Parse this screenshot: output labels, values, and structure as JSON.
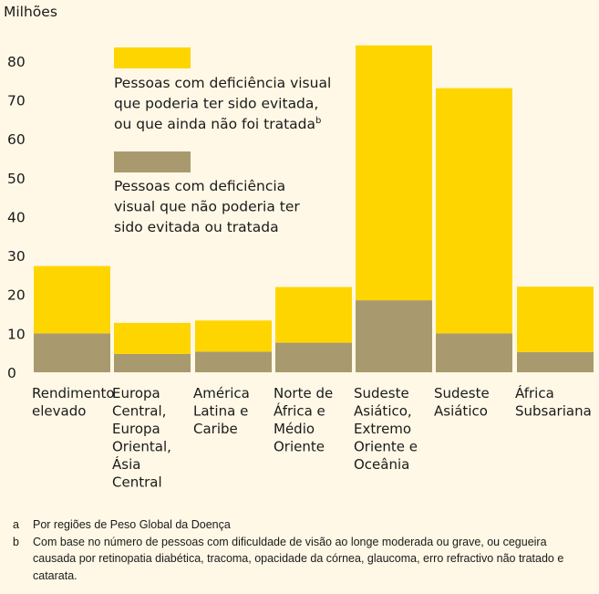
{
  "chart_data": {
    "type": "bar",
    "stacked": true,
    "ylabel": "Milhões",
    "ylim": [
      0,
      80
    ],
    "yticks": [
      0,
      10,
      20,
      30,
      40,
      50,
      60,
      70,
      80
    ],
    "grid": false,
    "legend_position": "inside-top-left",
    "categories": [
      [
        "Rendimento",
        "elevado"
      ],
      [
        "Europa",
        "Central,",
        "Europa",
        "Oriental,",
        "Ásia",
        "Central"
      ],
      [
        "América",
        "Latina e",
        "Caribe"
      ],
      [
        "Norte de",
        "África e",
        "Médio",
        "Oriente"
      ],
      [
        "Sudeste",
        "Asiático,",
        "Extremo",
        "Oriente e",
        "Oceânia"
      ],
      [
        "Sudeste",
        "Asiático"
      ],
      [
        "África",
        "Subsariana"
      ]
    ],
    "series": [
      {
        "name": [
          "Pessoas com deficiência",
          "visual que não poderia ter",
          "sido evitada ou tratada"
        ],
        "color": "#A89A6E",
        "values": [
          10,
          4.7,
          5.3,
          7.6,
          18.5,
          10,
          5.2
        ]
      },
      {
        "name": [
          "Pessoas com deficiência visual",
          "que poderia ter sido evitada,",
          "ou que ainda não foi tratada"
        ],
        "name_superscript": "b",
        "color": "#FFD500",
        "values": [
          17.3,
          8,
          8,
          14.3,
          65.5,
          63,
          16.8
        ]
      }
    ]
  },
  "footnotes": [
    {
      "mark": "a",
      "text": "Por regiões de Peso Global da Doença"
    },
    {
      "mark": "b",
      "text": "Com base no número de pessoas com dificuldade de visão ao longe moderada ou grave, ou cegueira causada por retinopatia diabética, tracoma, opacidade da córnea, glaucoma, erro refractivo não tratado e catarata."
    }
  ]
}
